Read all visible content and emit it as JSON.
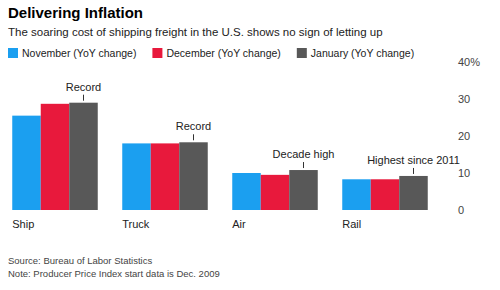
{
  "chart_data": {
    "type": "bar",
    "title": "Delivering Inflation",
    "subtitle": "The soaring cost of shipping freight in the U.S. shows no sign of letting up",
    "categories": [
      "Ship",
      "Truck",
      "Air",
      "Rail"
    ],
    "series": [
      {
        "name": "November (YoY change)",
        "color": "#1b9ff0",
        "values": [
          25.5,
          18,
          10,
          8.3
        ]
      },
      {
        "name": "December (YoY change)",
        "color": "#e8193c",
        "values": [
          28.7,
          18,
          9.5,
          8.3
        ]
      },
      {
        "name": "January (YoY change)",
        "color": "#585858",
        "values": [
          29,
          18.3,
          10.8,
          9.2
        ]
      }
    ],
    "annotations": [
      "Record",
      "Record",
      "Decade high",
      "Highest since 2011"
    ],
    "ylim": [
      0,
      40
    ],
    "yticks": [
      0,
      10,
      20,
      {
        "value": 40,
        "label": "40%"
      },
      30
    ],
    "grid": false,
    "legend": "top",
    "source": "Source: Bureau of Labor Statistics",
    "note": "Note: Producer Price Index start data is Dec. 2009"
  }
}
